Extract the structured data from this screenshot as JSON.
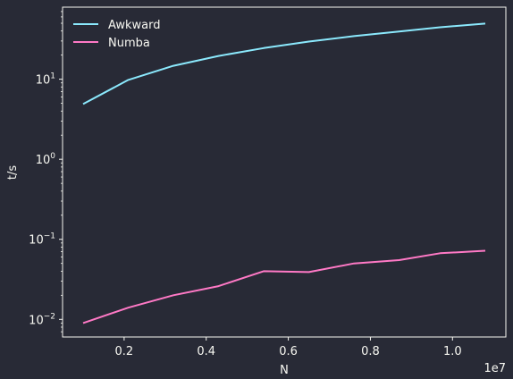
{
  "chart_data": {
    "type": "line",
    "title": "",
    "xlabel": "N",
    "ylabel": "t/s",
    "x_offset_text": "1e7",
    "xlim": [
      0.05,
      1.13
    ],
    "ylim_log10": [
      -2.22,
      1.9
    ],
    "yscale": "log",
    "grid": false,
    "legend_position": "top-left",
    "x_ticks": [
      {
        "value": 0.2,
        "label": "0.2"
      },
      {
        "value": 0.4,
        "label": "0.4"
      },
      {
        "value": 0.6,
        "label": "0.6"
      },
      {
        "value": 0.8,
        "label": "0.8"
      },
      {
        "value": 1.0,
        "label": "1.0"
      }
    ],
    "y_ticks": [
      {
        "exp": -2,
        "base": "10",
        "sup": "−2"
      },
      {
        "exp": -1,
        "base": "10",
        "sup": "−1"
      },
      {
        "exp": 0,
        "base": "10",
        "sup": "0"
      },
      {
        "exp": 1,
        "base": "10",
        "sup": "1"
      }
    ],
    "x": [
      0.1,
      0.21,
      0.32,
      0.43,
      0.54,
      0.65,
      0.76,
      0.87,
      0.97,
      1.08
    ],
    "series": [
      {
        "name": "Awkward",
        "color": "#8be9fd",
        "values": [
          4.9,
          9.8,
          14.7,
          19.5,
          24.5,
          29.5,
          34.5,
          39.5,
          44.5,
          49.5
        ]
      },
      {
        "name": "Numba",
        "color": "#ff79c6",
        "values": [
          0.009,
          0.014,
          0.02,
          0.026,
          0.04,
          0.039,
          0.05,
          0.055,
          0.067,
          0.072
        ]
      }
    ]
  }
}
